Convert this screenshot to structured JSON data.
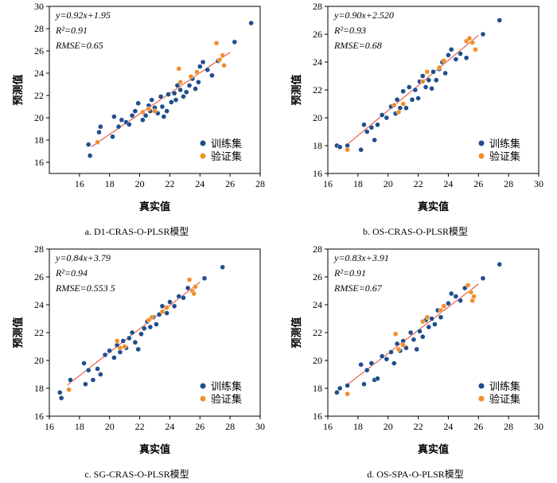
{
  "chart_data": [
    {
      "type": "scatter",
      "caption": "a.  D1-CRAS-O-PLSR模型",
      "xlabel": "真实值",
      "ylabel": "预测值",
      "xlim": [
        14,
        28
      ],
      "ylim": [
        15,
        30
      ],
      "xticks": [
        16,
        18,
        20,
        22,
        24,
        26,
        28
      ],
      "yticks": [
        16,
        18,
        20,
        22,
        24,
        26,
        28,
        30
      ],
      "stats": [
        "y=0.92x+1.95",
        "R²=0.91",
        "RMSE=0.65"
      ],
      "fit": {
        "slope": 0.92,
        "intercept": 1.95,
        "x_range": [
          16.8,
          26.0
        ]
      },
      "legend_position": "bottom-right",
      "series": [
        {
          "name": "训练集",
          "color": "#1f4e8c",
          "points": [
            [
              16.6,
              17.6
            ],
            [
              16.7,
              16.6
            ],
            [
              17.3,
              18.7
            ],
            [
              17.4,
              19.2
            ],
            [
              18.2,
              18.3
            ],
            [
              18.3,
              20.1
            ],
            [
              18.6,
              19.2
            ],
            [
              18.8,
              19.8
            ],
            [
              19.1,
              19.6
            ],
            [
              19.3,
              19.4
            ],
            [
              19.5,
              20.2
            ],
            [
              19.7,
              20.6
            ],
            [
              19.9,
              21.3
            ],
            [
              20.2,
              19.8
            ],
            [
              20.4,
              20.2
            ],
            [
              20.6,
              21.1
            ],
            [
              20.7,
              20.6
            ],
            [
              20.8,
              21.6
            ],
            [
              21.0,
              20.9
            ],
            [
              21.2,
              20.4
            ],
            [
              21.4,
              21.9
            ],
            [
              21.5,
              21.0
            ],
            [
              21.6,
              20.1
            ],
            [
              21.8,
              20.6
            ],
            [
              21.9,
              22.1
            ],
            [
              22.1,
              21.4
            ],
            [
              22.3,
              22.2
            ],
            [
              22.4,
              21.6
            ],
            [
              22.5,
              22.9
            ],
            [
              22.7,
              22.5
            ],
            [
              22.9,
              21.9
            ],
            [
              23.1,
              22.3
            ],
            [
              23.3,
              22.9
            ],
            [
              23.5,
              23.5
            ],
            [
              23.7,
              22.6
            ],
            [
              23.9,
              23.2
            ],
            [
              24.0,
              24.6
            ],
            [
              24.2,
              25.0
            ],
            [
              24.5,
              24.3
            ],
            [
              24.8,
              23.8
            ],
            [
              25.2,
              25.1
            ],
            [
              26.3,
              26.8
            ],
            [
              27.4,
              28.5
            ]
          ]
        },
        {
          "name": "验证集",
          "color": "#f28e2b",
          "points": [
            [
              17.2,
              17.8
            ],
            [
              20.2,
              20.5
            ],
            [
              20.6,
              20.8
            ],
            [
              21.0,
              20.6
            ],
            [
              22.6,
              24.4
            ],
            [
              22.7,
              23.2
            ],
            [
              23.4,
              23.7
            ],
            [
              23.8,
              24.1
            ],
            [
              25.1,
              26.7
            ],
            [
              25.3,
              25.2
            ],
            [
              25.5,
              25.6
            ],
            [
              25.6,
              24.7
            ]
          ]
        }
      ],
      "legend_labels": [
        "训练集",
        "验证集"
      ]
    },
    {
      "type": "scatter",
      "caption": "b.  OS-CRAS-O-PLSR模型",
      "xlabel": "真实值",
      "ylabel": "预测值",
      "xlim": [
        16,
        30
      ],
      "ylim": [
        16,
        28
      ],
      "xticks": [
        16,
        18,
        20,
        22,
        24,
        26,
        28,
        30
      ],
      "yticks": [
        16,
        18,
        20,
        22,
        24,
        26,
        28
      ],
      "stats": [
        "y=0.90x+2.520",
        "R²=0.93",
        "RMSE=0.68"
      ],
      "fit": {
        "slope": 0.9,
        "intercept": 2.52,
        "x_range": [
          17.2,
          26.0
        ]
      },
      "legend_position": "bottom-right",
      "series": [
        {
          "name": "训练集",
          "color": "#1f4e8c",
          "points": [
            [
              16.6,
              18.0
            ],
            [
              16.8,
              17.9
            ],
            [
              17.3,
              18.0
            ],
            [
              18.2,
              17.7
            ],
            [
              18.4,
              19.5
            ],
            [
              18.6,
              19.0
            ],
            [
              18.9,
              19.3
            ],
            [
              19.1,
              18.4
            ],
            [
              19.3,
              19.5
            ],
            [
              19.6,
              20.2
            ],
            [
              19.9,
              20.0
            ],
            [
              20.2,
              20.8
            ],
            [
              20.5,
              20.3
            ],
            [
              20.6,
              21.3
            ],
            [
              20.8,
              20.7
            ],
            [
              21.0,
              21.9
            ],
            [
              21.2,
              20.7
            ],
            [
              21.4,
              22.2
            ],
            [
              21.6,
              21.3
            ],
            [
              21.8,
              22.0
            ],
            [
              22.0,
              21.4
            ],
            [
              22.1,
              22.6
            ],
            [
              22.3,
              23.0
            ],
            [
              22.5,
              22.2
            ],
            [
              22.7,
              22.7
            ],
            [
              22.9,
              22.1
            ],
            [
              23.0,
              23.3
            ],
            [
              23.2,
              22.7
            ],
            [
              23.4,
              23.5
            ],
            [
              23.6,
              24.0
            ],
            [
              23.8,
              23.2
            ],
            [
              24.0,
              24.5
            ],
            [
              24.2,
              24.9
            ],
            [
              24.5,
              24.2
            ],
            [
              24.8,
              24.6
            ],
            [
              25.2,
              24.3
            ],
            [
              26.3,
              26.0
            ],
            [
              27.4,
              27.0
            ]
          ]
        },
        {
          "name": "验证集",
          "color": "#f28e2b",
          "points": [
            [
              17.3,
              17.7
            ],
            [
              20.4,
              20.9
            ],
            [
              20.7,
              20.4
            ],
            [
              21.0,
              21.0
            ],
            [
              22.3,
              22.6
            ],
            [
              22.6,
              23.3
            ],
            [
              23.4,
              23.6
            ],
            [
              23.7,
              24.1
            ],
            [
              25.2,
              25.5
            ],
            [
              25.4,
              25.7
            ],
            [
              25.6,
              25.4
            ],
            [
              25.8,
              24.9
            ]
          ]
        }
      ],
      "legend_labels": [
        "训练集",
        "验证集"
      ]
    },
    {
      "type": "scatter",
      "caption": "c.  SG-CRAS-O-PLSR模型",
      "xlabel": "真实值",
      "ylabel": "预测值",
      "xlim": [
        16,
        30
      ],
      "ylim": [
        16,
        28
      ],
      "xticks": [
        16,
        18,
        20,
        22,
        24,
        26,
        28,
        30
      ],
      "yticks": [
        16,
        18,
        20,
        22,
        24,
        26,
        28
      ],
      "stats": [
        "y=0.84x+3.79",
        "R²=0.94",
        "RMSE=0.553 5"
      ],
      "fit": {
        "slope": 0.84,
        "intercept": 3.79,
        "x_range": [
          17.2,
          26.0
        ]
      },
      "legend_position": "bottom-right",
      "series": [
        {
          "name": "训练集",
          "color": "#1f4e8c",
          "points": [
            [
              16.7,
              17.7
            ],
            [
              16.8,
              17.3
            ],
            [
              17.4,
              18.6
            ],
            [
              18.3,
              19.8
            ],
            [
              18.4,
              18.3
            ],
            [
              18.6,
              19.3
            ],
            [
              18.9,
              18.6
            ],
            [
              19.2,
              19.4
            ],
            [
              19.4,
              19.0
            ],
            [
              19.7,
              20.4
            ],
            [
              20.0,
              20.7
            ],
            [
              20.3,
              20.2
            ],
            [
              20.5,
              21.1
            ],
            [
              20.7,
              20.6
            ],
            [
              20.9,
              21.4
            ],
            [
              21.1,
              20.9
            ],
            [
              21.3,
              21.6
            ],
            [
              21.5,
              22.0
            ],
            [
              21.7,
              21.3
            ],
            [
              21.9,
              20.8
            ],
            [
              22.1,
              21.9
            ],
            [
              22.3,
              22.3
            ],
            [
              22.5,
              22.8
            ],
            [
              22.7,
              22.4
            ],
            [
              22.9,
              23.1
            ],
            [
              23.1,
              22.6
            ],
            [
              23.3,
              23.3
            ],
            [
              23.5,
              23.9
            ],
            [
              23.8,
              23.4
            ],
            [
              24.0,
              24.2
            ],
            [
              24.3,
              23.9
            ],
            [
              24.6,
              24.6
            ],
            [
              24.9,
              24.5
            ],
            [
              25.2,
              25.2
            ],
            [
              26.3,
              25.9
            ],
            [
              27.5,
              26.7
            ]
          ]
        },
        {
          "name": "验证集",
          "color": "#f28e2b",
          "points": [
            [
              17.3,
              17.9
            ],
            [
              20.5,
              21.4
            ],
            [
              20.7,
              20.9
            ],
            [
              21.0,
              21.0
            ],
            [
              22.6,
              22.9
            ],
            [
              22.8,
              23.1
            ],
            [
              23.5,
              23.5
            ],
            [
              23.8,
              23.8
            ],
            [
              25.3,
              25.8
            ],
            [
              25.5,
              25.0
            ],
            [
              25.6,
              24.8
            ],
            [
              25.7,
              25.3
            ]
          ]
        }
      ],
      "legend_labels": [
        "训练集",
        "验证集"
      ]
    },
    {
      "type": "scatter",
      "caption": "d.  OS-SPA-O-PLSR模型",
      "xlabel": "真实值",
      "ylabel": "预测值",
      "xlim": [
        16,
        30
      ],
      "ylim": [
        16,
        28
      ],
      "xticks": [
        16,
        18,
        20,
        22,
        24,
        26,
        28,
        30
      ],
      "yticks": [
        16,
        18,
        20,
        22,
        24,
        26,
        28
      ],
      "stats": [
        "y=0.83x+3.91",
        "R²=0.91",
        "RMSE=0.67"
      ],
      "fit": {
        "slope": 0.83,
        "intercept": 3.91,
        "x_range": [
          17.2,
          26.0
        ]
      },
      "legend_position": "bottom-right",
      "series": [
        {
          "name": "训练集",
          "color": "#1f4e8c",
          "points": [
            [
              16.6,
              17.7
            ],
            [
              16.8,
              18.0
            ],
            [
              17.3,
              18.2
            ],
            [
              18.2,
              19.7
            ],
            [
              18.4,
              18.3
            ],
            [
              18.6,
              19.3
            ],
            [
              18.9,
              19.8
            ],
            [
              19.1,
              18.6
            ],
            [
              19.3,
              18.7
            ],
            [
              19.6,
              20.3
            ],
            [
              19.9,
              20.1
            ],
            [
              20.2,
              20.6
            ],
            [
              20.4,
              19.8
            ],
            [
              20.6,
              21.2
            ],
            [
              20.8,
              20.7
            ],
            [
              21.0,
              21.4
            ],
            [
              21.2,
              20.9
            ],
            [
              21.5,
              22.0
            ],
            [
              21.7,
              21.5
            ],
            [
              21.9,
              20.8
            ],
            [
              22.1,
              22.1
            ],
            [
              22.3,
              21.7
            ],
            [
              22.5,
              22.9
            ],
            [
              22.7,
              22.4
            ],
            [
              22.9,
              23.0
            ],
            [
              23.1,
              22.6
            ],
            [
              23.3,
              23.6
            ],
            [
              23.5,
              23.1
            ],
            [
              23.7,
              23.9
            ],
            [
              24.0,
              24.1
            ],
            [
              24.2,
              24.8
            ],
            [
              24.5,
              24.6
            ],
            [
              24.8,
              24.3
            ],
            [
              25.1,
              25.2
            ],
            [
              26.3,
              25.9
            ],
            [
              27.4,
              26.9
            ]
          ]
        },
        {
          "name": "验证集",
          "color": "#f28e2b",
          "points": [
            [
              17.3,
              17.6
            ],
            [
              20.5,
              21.9
            ],
            [
              20.7,
              20.8
            ],
            [
              21.0,
              21.1
            ],
            [
              22.3,
              22.8
            ],
            [
              22.6,
              23.1
            ],
            [
              23.5,
              23.6
            ],
            [
              23.7,
              23.9
            ],
            [
              25.3,
              25.4
            ],
            [
              25.5,
              24.9
            ],
            [
              25.6,
              24.3
            ],
            [
              25.7,
              24.6
            ]
          ]
        }
      ],
      "legend_labels": [
        "训练集",
        "验证集"
      ]
    }
  ]
}
